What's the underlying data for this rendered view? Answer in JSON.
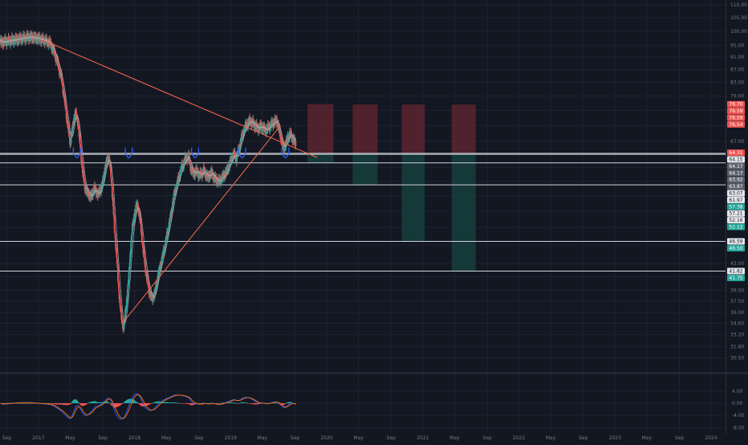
{
  "chart_data": {
    "type": "candlestick",
    "price_axis": {
      "scale": "log",
      "range": [
        29.0,
        112.0
      ],
      "ticks": [
        "110.00",
        "105.00",
        "100.00",
        "95.00",
        "91.00",
        "87.00",
        "83.00",
        "79.00",
        "75.00",
        "71.00",
        "67.00",
        "64.00",
        "61.00",
        "58.00",
        "55.00",
        "52.00",
        "49.00",
        "46.00",
        "43.00",
        "41.00",
        "39.00",
        "37.50",
        "36.00",
        "34.60",
        "33.20",
        "31.80",
        "30.50"
      ]
    },
    "macd_axis": {
      "range": [
        -9.5,
        9.5
      ],
      "ticks": [
        "4.00",
        "0.00",
        "-4.00",
        "-8.00"
      ]
    },
    "time_axis": {
      "ticks": [
        {
          "label": "Sep",
          "t": 2016.67
        },
        {
          "label": "2017",
          "t": 2017.0
        },
        {
          "label": "May",
          "t": 2017.33
        },
        {
          "label": "Sep",
          "t": 2017.67
        },
        {
          "label": "2018",
          "t": 2018.0
        },
        {
          "label": "May",
          "t": 2018.33
        },
        {
          "label": "Sep",
          "t": 2018.67
        },
        {
          "label": "2019",
          "t": 2019.0
        },
        {
          "label": "May",
          "t": 2019.33
        },
        {
          "label": "Sep",
          "t": 2019.67
        },
        {
          "label": "2020",
          "t": 2020.0
        },
        {
          "label": "May",
          "t": 2020.33
        },
        {
          "label": "Sep",
          "t": 2020.67
        },
        {
          "label": "2021",
          "t": 2021.0
        },
        {
          "label": "May",
          "t": 2021.33
        },
        {
          "label": "Sep",
          "t": 2021.67
        },
        {
          "label": "2022",
          "t": 2022.0
        },
        {
          "label": "May",
          "t": 2022.33
        },
        {
          "label": "Sep",
          "t": 2022.67
        },
        {
          "label": "2023",
          "t": 2023.0
        },
        {
          "label": "May",
          "t": 2023.33
        },
        {
          "label": "Sep",
          "t": 2023.67
        },
        {
          "label": "2024",
          "t": 2024.0
        }
      ],
      "range": [
        2016.6,
        2024.15
      ]
    },
    "price_path": [
      [
        2016.6,
        96.0
      ],
      [
        2016.7,
        96.6
      ],
      [
        2016.8,
        97.2
      ],
      [
        2016.9,
        97.9
      ],
      [
        2016.98,
        97.5
      ],
      [
        2017.06,
        96.8
      ],
      [
        2017.12,
        95.8
      ],
      [
        2017.16,
        93.0
      ],
      [
        2017.2,
        89.0
      ],
      [
        2017.24,
        84.0
      ],
      [
        2017.27,
        78.0
      ],
      [
        2017.3,
        72.0
      ],
      [
        2017.33,
        66.5
      ],
      [
        2017.36,
        71.0
      ],
      [
        2017.38,
        74.5
      ],
      [
        2017.41,
        72.0
      ],
      [
        2017.44,
        64.5
      ],
      [
        2017.46,
        60.0
      ],
      [
        2017.48,
        57.0
      ],
      [
        2017.51,
        55.5
      ],
      [
        2017.55,
        54.8
      ],
      [
        2017.58,
        56.5
      ],
      [
        2017.62,
        55.2
      ],
      [
        2017.66,
        56.8
      ],
      [
        2017.7,
        61.5
      ],
      [
        2017.73,
        63.5
      ],
      [
        2017.75,
        60.5
      ],
      [
        2017.77,
        55.0
      ],
      [
        2017.79,
        49.0
      ],
      [
        2017.81,
        45.0
      ],
      [
        2017.83,
        40.0
      ],
      [
        2017.85,
        37.0
      ],
      [
        2017.87,
        34.5
      ],
      [
        2017.89,
        34.2
      ],
      [
        2017.91,
        36.5
      ],
      [
        2017.94,
        41.0
      ],
      [
        2017.97,
        48.0
      ],
      [
        2018.0,
        51.5
      ],
      [
        2018.03,
        53.5
      ],
      [
        2018.06,
        50.0
      ],
      [
        2018.09,
        45.0
      ],
      [
        2018.12,
        41.5
      ],
      [
        2018.15,
        39.0
      ],
      [
        2018.18,
        37.8
      ],
      [
        2018.21,
        38.5
      ],
      [
        2018.25,
        41.5
      ],
      [
        2018.29,
        44.0
      ],
      [
        2018.33,
        47.0
      ],
      [
        2018.37,
        50.5
      ],
      [
        2018.41,
        55.0
      ],
      [
        2018.45,
        58.0
      ],
      [
        2018.49,
        61.0
      ],
      [
        2018.53,
        62.8
      ],
      [
        2018.56,
        63.6
      ],
      [
        2018.58,
        61.2
      ],
      [
        2018.61,
        59.5
      ],
      [
        2018.64,
        60.2
      ],
      [
        2018.68,
        59.2
      ],
      [
        2018.72,
        60.2
      ],
      [
        2018.76,
        58.8
      ],
      [
        2018.8,
        59.8
      ],
      [
        2018.84,
        58.4
      ],
      [
        2018.88,
        57.9
      ],
      [
        2018.93,
        59.2
      ],
      [
        2018.97,
        60.5
      ],
      [
        2019.0,
        62.5
      ],
      [
        2019.03,
        64.0
      ],
      [
        2019.06,
        63.0
      ],
      [
        2019.09,
        65.5
      ],
      [
        2019.12,
        68.5
      ],
      [
        2019.16,
        71.0
      ],
      [
        2019.2,
        72.2
      ],
      [
        2019.24,
        71.4
      ],
      [
        2019.28,
        70.2
      ],
      [
        2019.32,
        70.8
      ],
      [
        2019.36,
        69.8
      ],
      [
        2019.4,
        70.6
      ],
      [
        2019.44,
        71.6
      ],
      [
        2019.48,
        72.3
      ],
      [
        2019.5,
        70.3
      ],
      [
        2019.53,
        67.2
      ],
      [
        2019.55,
        65.2
      ],
      [
        2019.57,
        66.2
      ],
      [
        2019.6,
        68.3
      ],
      [
        2019.62,
        68.9
      ],
      [
        2019.65,
        67.5
      ],
      [
        2019.68,
        66.2
      ]
    ],
    "trend_lines": [
      {
        "from": [
          2017.05,
          96.8
        ],
        "to": [
          2019.9,
          63.2
        ]
      },
      {
        "from": [
          2017.9,
          35.0
        ],
        "to": [
          2019.52,
          71.0
        ]
      }
    ],
    "horizontal_levels": [
      64.17,
      63.92,
      61.97,
      57.21,
      46.59,
      41.82
    ],
    "pattern_markers": [
      [
        2017.4,
        64.2
      ],
      [
        2017.94,
        64.2
      ],
      [
        2018.63,
        64.2
      ],
      [
        2019.12,
        64.2
      ],
      [
        2019.57,
        64.2
      ]
    ],
    "position_boxes": [
      {
        "t0": 2019.8,
        "t1": 2020.07,
        "entry": 64.15,
        "stop": 76.7,
        "target": 61.97
      },
      {
        "t0": 2020.27,
        "t1": 2020.53,
        "entry": 64.15,
        "stop": 76.59,
        "target": 57.21
      },
      {
        "t0": 2020.78,
        "t1": 2021.02,
        "entry": 64.15,
        "stop": 76.59,
        "target": 46.59
      },
      {
        "t0": 2021.3,
        "t1": 2021.55,
        "entry": 64.15,
        "stop": 76.59,
        "target": 41.82
      }
    ],
    "price_labels": [
      {
        "text": "76.70",
        "kind": "stop"
      },
      {
        "text": "76.59",
        "kind": "stop"
      },
      {
        "text": "76.59",
        "kind": "stop"
      },
      {
        "text": "76.54",
        "kind": "stop"
      },
      {
        "text": "64.31",
        "kind": "current"
      },
      {
        "text": "64.15",
        "kind": "line"
      },
      {
        "text": "64.17",
        "kind": "gray"
      },
      {
        "text": "64.17",
        "kind": "gray"
      },
      {
        "text": "63.92",
        "kind": "gray"
      },
      {
        "text": "63.87",
        "kind": "gray"
      },
      {
        "text": "63.07",
        "kind": "line"
      },
      {
        "text": "61.97",
        "kind": "line"
      },
      {
        "text": "57.38",
        "kind": "target"
      },
      {
        "text": "57.21",
        "kind": "line"
      },
      {
        "text": "52.16",
        "kind": "line"
      },
      {
        "text": "52.12",
        "kind": "target"
      },
      {
        "text": "46.59",
        "kind": "line"
      },
      {
        "text": "46.50",
        "kind": "target"
      },
      {
        "text": "41.82",
        "kind": "line"
      },
      {
        "text": "41.75",
        "kind": "target"
      }
    ],
    "colors": {
      "background": "#131722",
      "grid": "#1f2330",
      "up": "#26a69a",
      "down": "#ef5350",
      "candle_body": "#a5a8ad",
      "trend": "#f2634a",
      "stop_zone": "#5a2530",
      "target_zone": "#163c3c",
      "marker": "#2962ff",
      "level": "#d1d4dc",
      "macd_line": "#2962ff",
      "signal_line": "#ff6d00",
      "axis_text": "#787b86"
    }
  }
}
